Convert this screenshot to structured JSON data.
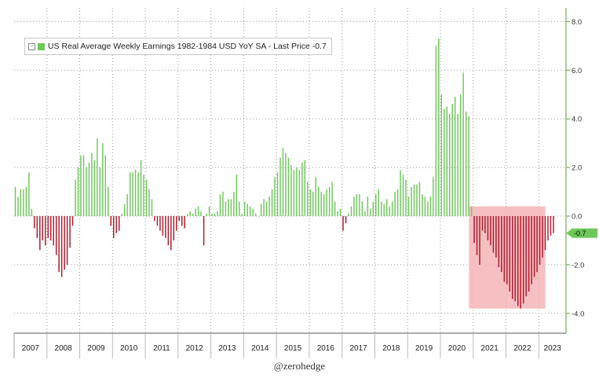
{
  "chart_data": {
    "type": "bar",
    "title": "US Real Average Weekly Earnings 1982-1984 USD YoY SA - Last Price -0.7",
    "legend": {
      "label": "US Real Average Weekly Earnings 1982-1984 USD YoY SA - Last Price -0.7",
      "position": "top-left"
    },
    "last_value_label": "-0.7",
    "ylim": [
      -4.7,
      8.2
    ],
    "y_ticks": [
      8.0,
      6.0,
      4.0,
      2.0,
      0.0,
      -2.0,
      -4.0
    ],
    "y_tick_labels": [
      "8.0",
      "6.0",
      "4.0",
      "2.0",
      "0.0",
      "-2.0",
      "-4.0"
    ],
    "y_axis_side": "right",
    "grid": true,
    "x_start": 2007.0,
    "x_end": 2023.83,
    "x_tick_labels": [
      "2007",
      "2008",
      "2009",
      "2010",
      "2011",
      "2012",
      "2013",
      "2014",
      "2015",
      "2016",
      "2017",
      "2018",
      "2019",
      "2020",
      "2021",
      "2022",
      "2023"
    ],
    "highlight": {
      "x_from": 2020.87,
      "x_to": 2023.2,
      "y_from": -3.8,
      "y_to": 0.4
    },
    "colors": {
      "positive": "#6ec85a",
      "negative": "#b1172b",
      "highlight": "#f4b4b6",
      "grid": "#999999",
      "axis": "#5d9b3a"
    },
    "series": [
      {
        "start": 2007.0,
        "step": 0.0833,
        "values": [
          1.2,
          0.8,
          1.1,
          1.1,
          1.2,
          1.8,
          0.3,
          -0.5,
          -0.9,
          -1.4,
          -1.0,
          -1.2,
          -0.9,
          -1.0,
          -1.2,
          -1.6,
          -2.3,
          -2.5,
          -2.2,
          -2.0,
          -1.3,
          -0.4,
          1.5,
          2.0,
          2.5,
          2.5,
          2.0,
          2.2,
          2.6,
          2.3,
          3.2,
          2.0,
          3.0,
          2.5,
          1.2,
          -0.4,
          -0.9,
          -0.7,
          -0.6,
          0.1,
          0.5,
          0.9,
          1.8,
          1.8,
          1.9,
          1.8,
          2.3,
          1.7,
          1.5,
          1.1,
          0.7,
          -0.2,
          -0.4,
          -0.6,
          -0.8,
          -0.9,
          -1.2,
          -1.4,
          -1.0,
          -0.6,
          -0.2,
          -0.4,
          -0.5,
          0.1,
          0.2,
          0.1,
          0.3,
          0.4,
          0.2,
          -1.2,
          0.1,
          0.4,
          0.1,
          0.1,
          0.2,
          0.9,
          1.0,
          0.6,
          0.7,
          0.7,
          1.0,
          1.7,
          0.6,
          0.1,
          0.6,
          0.5,
          0.4,
          0.3,
          0.1,
          0.0,
          0.5,
          0.7,
          0.6,
          0.8,
          1.1,
          1.6,
          1.8,
          2.4,
          2.8,
          2.6,
          2.4,
          2.1,
          1.9,
          2.0,
          1.9,
          2.2,
          2.3,
          1.4,
          1.1,
          1.0,
          1.6,
          1.2,
          1.0,
          0.9,
          1.1,
          1.2,
          1.4,
          0.6,
          0.2,
          0.3,
          -0.6,
          -0.3,
          0.1,
          0.4,
          0.8,
          0.9,
          0.9,
          0.6,
          0.2,
          0.8,
          0.3,
          0.6,
          0.9,
          1.1,
          0.6,
          0.5,
          0.7,
          0.4,
          0.6,
          1.0,
          1.1,
          1.9,
          1.7,
          1.5,
          0.8,
          1.2,
          1.3,
          1.3,
          1.4,
          0.9,
          0.8,
          0.6,
          0.8,
          1.6,
          7.0,
          7.3,
          5.0,
          4.4,
          4.5,
          4.2,
          4.6,
          4.9,
          4.2,
          5.0,
          5.9,
          4.3,
          4.1,
          0.4,
          -1.1,
          -1.6,
          -2.0,
          -0.6,
          -0.7,
          -1.0,
          -1.2,
          -1.5,
          -1.7,
          -2.1,
          -2.3,
          -2.7,
          -2.8,
          -3.1,
          -3.4,
          -3.5,
          -3.7,
          -3.8,
          -3.6,
          -3.3,
          -3.1,
          -2.8,
          -2.5,
          -2.3,
          -2.0,
          -1.7,
          -1.4,
          -1.0,
          -0.8,
          -0.7
        ]
      }
    ]
  },
  "watermark": "@zerohedge"
}
